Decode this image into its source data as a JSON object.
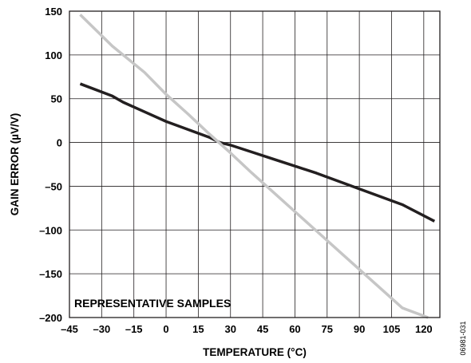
{
  "chart_data": {
    "type": "line",
    "xlabel": "TEMPERATURE (°C)",
    "ylabel": "GAIN ERROR (µV/V)",
    "xlim": [
      -45,
      127.5
    ],
    "ylim": [
      -200,
      150
    ],
    "xticks": [
      -45,
      -30,
      -15,
      0,
      15,
      30,
      45,
      60,
      75,
      90,
      105,
      120
    ],
    "yticks": [
      150,
      100,
      50,
      0,
      -50,
      -100,
      -150,
      -200
    ],
    "xtick_labels": [
      "–45",
      "–30",
      "–15",
      "0",
      "15",
      "30",
      "45",
      "60",
      "75",
      "90",
      "105",
      "120"
    ],
    "ytick_labels": [
      "150",
      "100",
      "50",
      "0",
      "–50",
      "–100",
      "–150",
      "–200"
    ],
    "grid": true,
    "annotation": "REPRESENTATIVE SAMPLES",
    "figure_id": "06981-031",
    "series": [
      {
        "color": "#231f20",
        "x": [
          -40,
          -25,
          -20,
          -10,
          0,
          10,
          20,
          25,
          30,
          40,
          50,
          60,
          70,
          80,
          90,
          100,
          110,
          125
        ],
        "y": [
          67,
          53,
          46,
          35,
          24,
          15,
          6,
          0,
          -3,
          -11,
          -19,
          -27,
          -35,
          -44,
          -53,
          -62,
          -71,
          -90
        ]
      },
      {
        "color": "#c6c6c6",
        "x": [
          -40,
          -25,
          -10,
          0,
          10,
          20,
          30,
          40,
          50,
          60,
          70,
          80,
          90,
          100,
          110,
          122
        ],
        "y": [
          146,
          110,
          80,
          55,
          33,
          10,
          -12,
          -35,
          -57,
          -79,
          -101,
          -123,
          -145,
          -167,
          -189,
          -200
        ]
      }
    ]
  }
}
